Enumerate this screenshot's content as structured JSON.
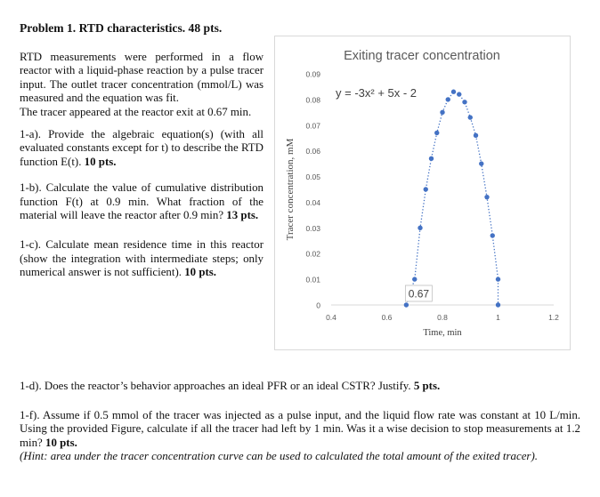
{
  "title": "Problem 1. RTD characteristics. 48 pts.",
  "intro": "RTD measurements were performed in a flow reactor with a liquid-phase reaction by a pulse tracer input. The outlet tracer concentration (mmol/L) was measured and the equation was fit.",
  "intro2": "The tracer appeared at the reactor exit at 0.67 min.",
  "q1a": {
    "text": "1-a). Provide the algebraic equation(s) (with all evaluated constants except for t) to describe the RTD function E(t). ",
    "pts": "10 pts."
  },
  "q1b": {
    "text": "1-b). Calculate the value of cumulative distribution function F(t) at 0.9 min. What fraction of the material will leave the reactor after 0.9 min? ",
    "pts": "13 pts."
  },
  "q1c": {
    "text": "1-c). Calculate mean residence time in this reactor (show the integration with intermediate steps; only numerical answer is not sufficient). ",
    "pts": "10 pts."
  },
  "q1d": {
    "text": "1-d). Does the reactor’s behavior approaches an ideal PFR or an ideal CSTR? Justify. ",
    "pts": "5 pts."
  },
  "q1f": {
    "text": "1-f). Assume if 0.5 mmol of the tracer was injected as a pulse input, and the liquid flow rate was constant at 10 L/min. Using the provided Figure, calculate if all the tracer had left by 1 min. Was it a wise decision to stop measurements at 1.2 min? ",
    "pts": "10 pts."
  },
  "hint": "(Hint: area under the tracer concentration curve can be used to calculated the total amount of the exited tracer).",
  "chart_data": {
    "type": "scatter",
    "title": "Exiting tracer concentration",
    "xlabel": "Time, min",
    "ylabel": "Tracer concentration, mM",
    "xlim": [
      0.4,
      1.2
    ],
    "ylim": [
      0,
      0.09
    ],
    "xticks": [
      "0.4",
      "0.6",
      "0.8",
      "1",
      "1.2"
    ],
    "yticks": [
      "0",
      "0.01",
      "0.02",
      "0.03",
      "0.04",
      "0.05",
      "0.06",
      "0.07",
      "0.08",
      "0.09"
    ],
    "equation": "y = -3x² + 5x - 2",
    "annotation": "0.67",
    "gridlines": false,
    "trendline": "dotted",
    "marker_color": "#4472c4",
    "points": {
      "x": [
        0.67,
        0.7,
        0.72,
        0.74,
        0.76,
        0.78,
        0.8,
        0.82,
        0.84,
        0.86,
        0.88,
        0.9,
        0.92,
        0.94,
        0.96,
        0.98,
        1.0
      ],
      "y": [
        0.0,
        0.01,
        0.03,
        0.045,
        0.057,
        0.067,
        0.075,
        0.08,
        0.083,
        0.082,
        0.079,
        0.073,
        0.066,
        0.055,
        0.042,
        0.027,
        0.01
      ]
    },
    "endpoint": {
      "x": 1.0,
      "y": 0.0
    }
  }
}
